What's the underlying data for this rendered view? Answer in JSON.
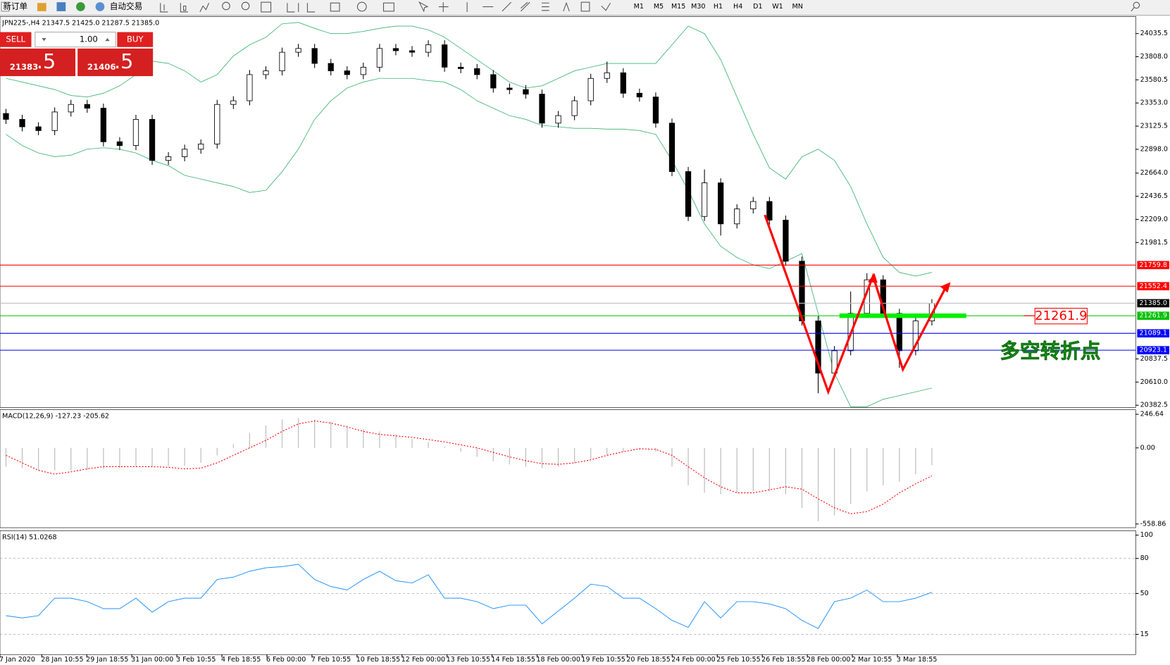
{
  "toolbar": {
    "new_order": "新订单",
    "auto_trading": "自动交易",
    "timeframes": [
      "M1",
      "M5",
      "M15",
      "M30",
      "H1",
      "H4",
      "D1",
      "W1",
      "MN"
    ]
  },
  "trade_panel": {
    "sell": "SELL",
    "buy": "BUY",
    "lot": "1.00",
    "bid_main": "21383",
    "bid_frac": ".5",
    "ask_main": "21406",
    "ask_frac": ".5"
  },
  "time_labels": [
    "7 Jan 2020",
    "28 Jan 10:55",
    "29 Jan 18:55",
    "31 Jan 00:00",
    "3 Feb 10:55",
    "4 Feb 18:55",
    "6 Feb 00:00",
    "7 Feb 10:55",
    "10 Feb 18:55",
    "12 Feb 00:00",
    "13 Feb 10:55",
    "14 Feb 18:55",
    "18 Feb 00:00",
    "19 Feb 10:55",
    "20 Feb 18:55",
    "24 Feb 00:00",
    "25 Feb 10:55",
    "26 Feb 18:55",
    "28 Feb 00:00",
    "2 Mar 10:55",
    "3 Mar 18:55"
  ],
  "chart_data": [
    {
      "type": "candlestick",
      "title": "JPN225-,H4  21347.5 21425.0 21287.5 21385.0",
      "open": [
        23250,
        23192,
        23119,
        23082,
        23265,
        23339,
        23302,
        22972,
        22935,
        23192,
        22789,
        22825,
        22899,
        22950,
        23339,
        23375,
        23632,
        23669,
        23852,
        23889,
        23742,
        23669,
        23632,
        23705,
        23889,
        23867,
        23852,
        23925,
        23705,
        23691,
        23632,
        23500,
        23485,
        23440,
        23155,
        23229,
        23375,
        23595,
        23650,
        23449,
        23412,
        23155,
        22679,
        22238,
        22568,
        22165,
        22312,
        22385,
        22202,
        21798,
        21211,
        20698,
        20918,
        21285,
        21615,
        21285,
        20918,
        21211
      ],
      "high": [
        23295,
        23237,
        23164,
        23310,
        23384,
        23384,
        23347,
        23017,
        23237,
        23237,
        22870,
        22944,
        22995,
        23384,
        23420,
        23677,
        23714,
        23897,
        23934,
        23934,
        23787,
        23714,
        23750,
        23934,
        23934,
        23912,
        23970,
        23970,
        23750,
        23736,
        23677,
        23545,
        23530,
        23485,
        23274,
        23420,
        23640,
        23760,
        23695,
        23494,
        23457,
        23200,
        22724,
        22700,
        22613,
        22357,
        22430,
        22430,
        22247,
        21843,
        21256,
        20963,
        21500,
        21680,
        21660,
        21330,
        21256,
        21425
      ],
      "low": [
        23147,
        23074,
        23037,
        23037,
        23220,
        23257,
        22927,
        22890,
        22890,
        22744,
        22744,
        22780,
        22854,
        22905,
        23294,
        23330,
        23587,
        23624,
        23807,
        23697,
        23624,
        23587,
        23587,
        23660,
        23822,
        23807,
        23807,
        23660,
        23646,
        23587,
        23455,
        23440,
        23395,
        23110,
        23110,
        23184,
        23330,
        23550,
        23404,
        23367,
        23110,
        22634,
        22193,
        22193,
        22050,
        22120,
        22267,
        22157,
        21753,
        21166,
        20500,
        20653,
        20873,
        21240,
        21240,
        20750,
        20873,
        21166
      ],
      "close": [
        23192,
        23119,
        23082,
        23265,
        23339,
        23302,
        22972,
        22935,
        23192,
        22789,
        22825,
        22899,
        22950,
        23339,
        23375,
        23632,
        23669,
        23852,
        23889,
        23742,
        23669,
        23632,
        23705,
        23889,
        23867,
        23852,
        23925,
        23705,
        23691,
        23632,
        23500,
        23485,
        23440,
        23155,
        23229,
        23375,
        23595,
        23650,
        23449,
        23412,
        23155,
        22679,
        22238,
        22568,
        22165,
        22312,
        22385,
        22202,
        21798,
        21211,
        20698,
        20918,
        21285,
        21615,
        21285,
        20918,
        21211,
        21385
      ],
      "series": [
        {
          "color": "#3cb371",
          "values": [
            23595,
            23559,
            23522,
            23485,
            23427,
            23412,
            23449,
            23522,
            23632,
            23764,
            23742,
            23669,
            23559,
            23632,
            23815,
            23925,
            23999,
            24131,
            24145,
            24087,
            24035,
            24035,
            24057,
            24087,
            24109,
            24109,
            24072,
            23999,
            23889,
            23779,
            23669,
            23559,
            23500,
            23522,
            23595,
            23669,
            23705,
            23742,
            23742,
            23742,
            23742,
            23925,
            24109,
            24035,
            23779,
            23412,
            23045,
            22715,
            22605,
            22825,
            22899,
            22789,
            22532,
            22165,
            21835,
            21688,
            21652,
            21688
          ]
        },
        {
          "color": "#3cb371",
          "values": [
            23045,
            22935,
            22862,
            22825,
            22840,
            22899,
            22913,
            22899,
            22862,
            22789,
            22737,
            22642,
            22605,
            22568,
            22532,
            22473,
            22495,
            22678,
            22899,
            23192,
            23375,
            23500,
            23559,
            23595,
            23595,
            23595,
            23573,
            23559,
            23485,
            23375,
            23302,
            23229,
            23192,
            23133,
            23119,
            23104,
            23104,
            23096,
            23096,
            23082,
            23045,
            22789,
            22495,
            22165,
            21945,
            21835,
            21762,
            21725,
            21798,
            21872,
            21285,
            20698,
            20368,
            20368,
            20441,
            20477,
            20514,
            20551
          ]
        }
      ],
      "ylim": [
        20360,
        24204
      ],
      "yticks": [
        24035.5,
        {
          "value": 23808,
          "label": "23808.0"
        },
        23580.5,
        {
          "value": 23353,
          "label": "23353.0"
        },
        23125.5,
        {
          "value": 22898,
          "label": "22898.0"
        },
        {
          "value": 22664,
          "label": "22664.0"
        },
        22436.5,
        {
          "value": 22209,
          "label": "22209.0"
        },
        21981.5,
        20837.5,
        {
          "value": 20610,
          "label": "20610.0"
        },
        20382.5
      ],
      "levels": [
        {
          "value": 21759.8,
          "color": "#ff0000"
        },
        {
          "value": 21552.4,
          "color": "#ff0000"
        },
        {
          "value": 21385,
          "label": "21385.0",
          "color": "#000000",
          "line": "#c0c0c0"
        },
        {
          "value": 21261.9,
          "color": "#00c000"
        },
        {
          "value": 21089.1,
          "color": "#0000ff"
        },
        {
          "value": 20923.1,
          "color": "#0000ff"
        }
      ],
      "annotations": [
        "21261.9",
        "多空转折点"
      ]
    },
    {
      "type": "macd",
      "title": "MACD(12,26,9) -127.23 -205.62",
      "series": [
        {
          "color": "#c0c0c0",
          "values": [
            -138,
            -149,
            -165,
            -165,
            -165,
            -165,
            -154,
            -149,
            -138,
            -138,
            -138,
            -132,
            -110,
            -55,
            28,
            110,
            165,
            209,
            220,
            209,
            193,
            165,
            138,
            121,
            99,
            66,
            44,
            11,
            -28,
            -66,
            -99,
            -121,
            -138,
            -149,
            -138,
            -110,
            -83,
            -55,
            -28,
            -17,
            -28,
            -138,
            -275,
            -330,
            -341,
            -330,
            -319,
            -319,
            -341,
            -440,
            -539,
            -495,
            -413,
            -319,
            -275,
            -248,
            -193,
            -127.23
          ]
        },
        {
          "color": "#ff0000",
          "values": [
            -55,
            -110,
            -165,
            -193,
            -176,
            -154,
            -138,
            -138,
            -138,
            -138,
            -143,
            -154,
            -149,
            -110,
            -55,
            0,
            55,
            121,
            176,
            198,
            182,
            154,
            121,
            99,
            88,
            77,
            61,
            44,
            22,
            0,
            -33,
            -66,
            -94,
            -116,
            -121,
            -110,
            -88,
            -55,
            -28,
            -6,
            -11,
            -55,
            -138,
            -220,
            -286,
            -330,
            -330,
            -308,
            -286,
            -303,
            -374,
            -440,
            -484,
            -468,
            -413,
            -330,
            -264,
            -205.62
          ]
        }
      ],
      "ylim": [
        -586,
        280
      ],
      "yticks": [
        246.64,
        {
          "value": 0,
          "label": "0.00"
        },
        -558.86
      ]
    },
    {
      "type": "line",
      "title": "RSI(14) 51.0268",
      "series": [
        {
          "color": "#1e90ff",
          "values": [
            31,
            29,
            31,
            46,
            46,
            43,
            37,
            37,
            46,
            34,
            43,
            46,
            46,
            62,
            64,
            69,
            72,
            73,
            75,
            62,
            56,
            53,
            62,
            69,
            61,
            59,
            66,
            46,
            46,
            43,
            37,
            40,
            40,
            24,
            35,
            46,
            58,
            56,
            46,
            46,
            37,
            27,
            21,
            43,
            29,
            43,
            43,
            41,
            37,
            27,
            20,
            43,
            46,
            53,
            43,
            43,
            46,
            51.0268
          ]
        }
      ],
      "ylim": [
        -2.3,
        103.8
      ],
      "yticks": [
        100,
        80,
        50,
        15
      ],
      "grid": true
    }
  ]
}
